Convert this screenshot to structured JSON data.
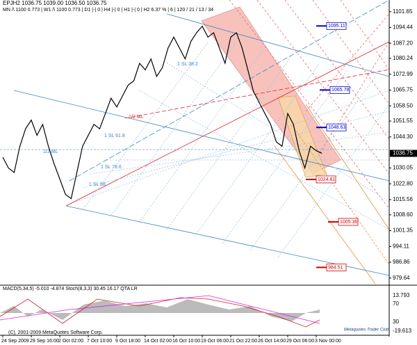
{
  "chart_data": {
    "type": "line",
    "title": "EPJH2  1036.75 1039.00 1036.50 1036.75",
    "subtitle": "MN /\\ 1100  0.773 | W1 /\\ 1100  0.773 | D1 |-| 0 | H4 |-| 0 | H1 |-| 0 | H2  6.37 % | 6 | 120 / 21 / 13 / 34",
    "categories": [
      "24 Sep 2009",
      null,
      null,
      null,
      null,
      "29 Sep 16:00",
      null,
      null,
      null,
      null,
      "2 Oct 02:00",
      null,
      null,
      null,
      null,
      "7 Oct 10:00",
      null,
      null,
      null,
      null,
      "9 Oct 18:00",
      null,
      null,
      null,
      null,
      "14 Oct 02:00",
      null,
      null,
      null,
      null,
      "16 Oct 10:00",
      null,
      null,
      null,
      null,
      "19 Oct 06:00",
      null,
      null,
      null,
      null,
      "21 Oct 22:00",
      null,
      null,
      null,
      null,
      "26 Oct 14:00",
      null,
      null,
      null,
      null,
      "29 Oct 06:00",
      null,
      null,
      null,
      null,
      "3 Nov 00:00",
      null
    ],
    "values": [
      1035,
      1030,
      1028,
      1040,
      1048,
      1052,
      1045,
      1050,
      1040,
      1032,
      1025,
      1018,
      1016,
      1028,
      1040,
      1045,
      1050,
      1048,
      1055,
      1062,
      1058,
      1063,
      1068,
      1070,
      1078,
      1075,
      1080,
      1072,
      1076,
      1085,
      1090,
      1085,
      1080,
      1088,
      1092,
      1095,
      1090,
      1092,
      1085,
      1078,
      1090,
      1092,
      1085,
      1075,
      1065,
      1060,
      1055,
      1050,
      1042,
      1040,
      1055,
      1050,
      1038,
      1030,
      1040,
      1038,
      1036.75
    ],
    "color": "#000000",
    "ylim": [
      977,
      1107
    ],
    "yticks": [
      1101.65,
      1094.44,
      {
        "value": 1087.2,
        "label": "1087.20"
      },
      1080.24,
      1072.99,
      1065.75,
      {
        "value": 1058.5,
        "label": "1058.50"
      },
      1051.55,
      {
        "value": 1044.3,
        "label": "1044.30"
      },
      1030.05,
      {
        "value": 1022.8,
        "label": "1022.80"
      },
      1015.56,
      {
        "value": 1008.6,
        "label": "1008.60"
      },
      1001.35,
      994.11,
      986.86,
      979.64
    ],
    "current_price": 1036.75,
    "price_labels": [
      1095.11,
      1065.78,
      1048.63,
      1024.81,
      1005.36,
      984.51
    ],
    "annotations": [
      "1/2 ML",
      "1/2 ML",
      "1 SL 38.2",
      "1 SL 61.8",
      "1 SL 78.6",
      "1 SL 88"
    ],
    "copyright": "(C), 2001-2009 MetaQuotes Software Corp.",
    "indicator_title": "MACD(5,34,5) -5.010 -4.874  Stoch(8,3,3) 30.45 16.17  QTA LR",
    "indicator_ticks": [
      "13.793",
      "70",
      "30",
      "-19.613"
    ],
    "watermark": "Metaquotes Trader Club"
  }
}
